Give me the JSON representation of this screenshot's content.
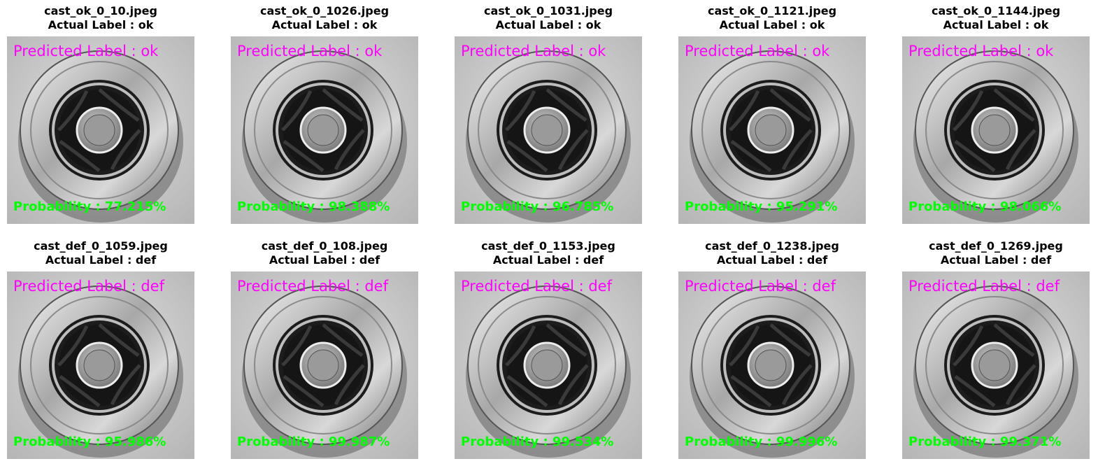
{
  "colors": {
    "predicted": "#ff00ff",
    "probability": "#00ff00",
    "title": "#000000"
  },
  "panels": [
    {
      "filename": "cast_ok_0_10.jpeg",
      "actual": "Actual Label : ok",
      "predicted": "Predicted Label : ok",
      "probability": "Probability : 77.215%",
      "bg": "#b4b4b4"
    },
    {
      "filename": "cast_ok_0_1026.jpeg",
      "actual": "Actual Label : ok",
      "predicted": "Predicted Label : ok",
      "probability": "Probability : 98.388%",
      "bg": "#bcbcbc"
    },
    {
      "filename": "cast_ok_0_1031.jpeg",
      "actual": "Actual Label : ok",
      "predicted": "Predicted Label : ok",
      "probability": "Probability : 96.785%",
      "bg": "#c6c6c6"
    },
    {
      "filename": "cast_ok_0_1121.jpeg",
      "actual": "Actual Label : ok",
      "predicted": "Predicted Label : ok",
      "probability": "Probability : 95.291%",
      "bg": "#cfcfcf"
    },
    {
      "filename": "cast_ok_0_1144.jpeg",
      "actual": "Actual Label : ok",
      "predicted": "Predicted Label : ok",
      "probability": "Probability : 98.066%",
      "bg": "#d2d2d2"
    },
    {
      "filename": "cast_def_0_1059.jpeg",
      "actual": "Actual Label : def",
      "predicted": "Predicted Label : def",
      "probability": "Probability : 95.986%",
      "bg": "#a9a9a9"
    },
    {
      "filename": "cast_def_0_108.jpeg",
      "actual": "Actual Label : def",
      "predicted": "Predicted Label : def",
      "probability": "Probability : 99.987%",
      "bg": "#b7b7b7"
    },
    {
      "filename": "cast_def_0_1153.jpeg",
      "actual": "Actual Label : def",
      "predicted": "Predicted Label : def",
      "probability": "Probability : 99.534%",
      "bg": "#a6a6a6"
    },
    {
      "filename": "cast_def_0_1238.jpeg",
      "actual": "Actual Label : def",
      "predicted": "Predicted Label : def",
      "probability": "Probability : 99.996%",
      "bg": "#9c9c9c"
    },
    {
      "filename": "cast_def_0_1269.jpeg",
      "actual": "Actual Label : def",
      "predicted": "Predicted Label : def",
      "probability": "Probability : 99.371%",
      "bg": "#9a9a9a"
    }
  ]
}
